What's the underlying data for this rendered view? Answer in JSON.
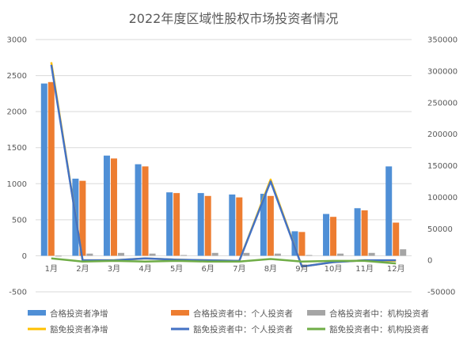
{
  "chart_data": {
    "type": "combo",
    "title": "2022年度区域性股权市场投资者情况",
    "categories": [
      "1月",
      "2月",
      "3月",
      "4月",
      "5月",
      "6月",
      "7月",
      "8月",
      "9月",
      "10月",
      "11月",
      "12月"
    ],
    "y_left": {
      "min": -500,
      "max": 3000,
      "step": 500,
      "ticks": [
        "-500",
        "0",
        "500",
        "1000",
        "1500",
        "2000",
        "2500",
        "3000"
      ]
    },
    "y_right": {
      "min": -50000,
      "max": 350000,
      "step": 50000,
      "ticks": [
        "-50000",
        "0",
        "50000",
        "100000",
        "150000",
        "200000",
        "250000",
        "300000",
        "350000"
      ]
    },
    "grid": true,
    "legend_position": "bottom",
    "bar_series": [
      {
        "name": "合格投资者净增",
        "color": "#4f8fd6",
        "axis": "left",
        "values": [
          2390,
          1070,
          1390,
          1270,
          880,
          870,
          850,
          860,
          340,
          580,
          660,
          1240
        ]
      },
      {
        "name": "合格投资者中：个人投资者",
        "color": "#ed7d31",
        "axis": "left",
        "values": [
          2410,
          1040,
          1350,
          1240,
          870,
          830,
          810,
          830,
          330,
          540,
          630,
          460
        ]
      },
      {
        "name": "合格投资者中：机构投资者",
        "color": "#a5a5a5",
        "axis": "left",
        "values": [
          -10,
          30,
          40,
          30,
          10,
          40,
          40,
          30,
          10,
          30,
          40,
          90
        ]
      }
    ],
    "line_series": [
      {
        "name": "豁免投资者净增",
        "color": "#ffc000",
        "axis": "right",
        "values": [
          314000,
          0,
          0,
          3000,
          1000,
          0,
          -1000,
          128000,
          -10000,
          -3000,
          0,
          -1000
        ]
      },
      {
        "name": "豁免投资者中：个人投资者",
        "color": "#4472c4",
        "axis": "right",
        "values": [
          310000,
          0,
          0,
          3000,
          1000,
          0,
          -1000,
          125000,
          -10000,
          -3000,
          0,
          0
        ]
      },
      {
        "name": "豁免投资者中：机构投资者",
        "color": "#70ad47",
        "axis": "right",
        "values": [
          3000,
          -2000,
          -1000,
          -2000,
          -1000,
          -2000,
          -2000,
          2000,
          -2000,
          -1000,
          -1000,
          -5000
        ]
      }
    ]
  }
}
